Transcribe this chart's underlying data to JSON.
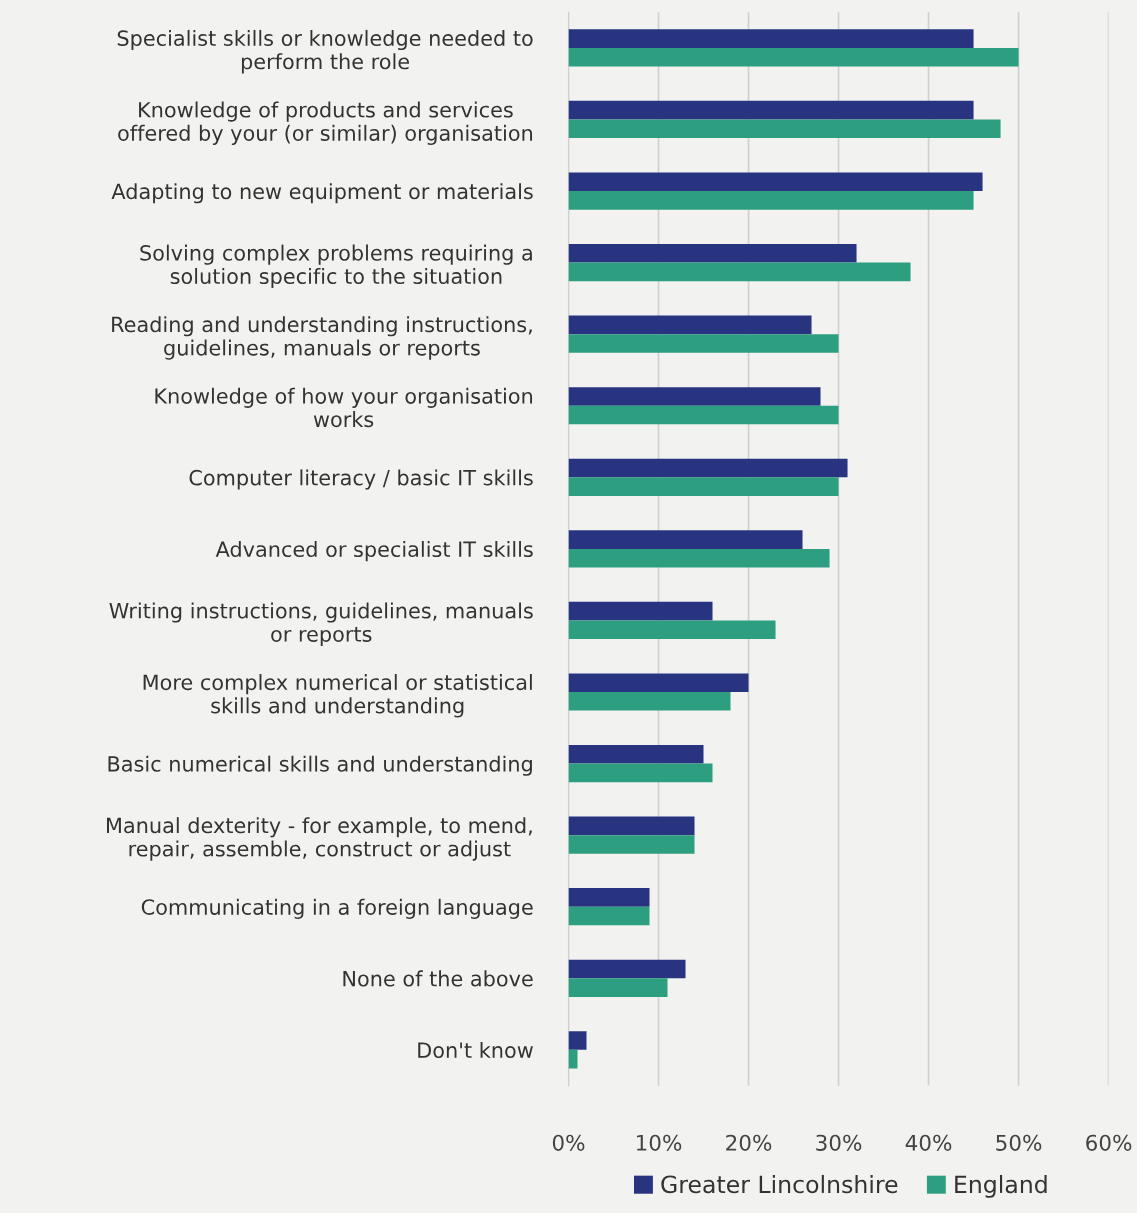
{
  "chart_data": {
    "type": "bar",
    "orientation": "horizontal",
    "categories": [
      "Specialist skills or knowledge needed to\nperform the role",
      "Knowledge of products and services\noffered by your (or similar) organisation",
      "Adapting to new equipment or materials",
      "Solving complex problems requiring a\nsolution specific to the situation",
      "Reading and understanding instructions,\nguidelines, manuals or reports",
      "Knowledge of how your organisation\nworks",
      "Computer literacy / basic IT skills",
      "Advanced or specialist IT skills",
      "Writing instructions, guidelines, manuals\nor reports",
      "More complex numerical or statistical\nskills and understanding",
      "Basic numerical skills and understanding",
      "Manual dexterity - for example, to mend,\nrepair, assemble, construct or adjust",
      "Communicating in a foreign language",
      "None of the above",
      "Don't know"
    ],
    "series": [
      {
        "name": "Greater Lincolnshire",
        "color": "#283480",
        "values": [
          45,
          45,
          46,
          32,
          27,
          28,
          31,
          26,
          16,
          20,
          15,
          14,
          9,
          13,
          2
        ]
      },
      {
        "name": "England",
        "color": "#2e9e80",
        "values": [
          50,
          48,
          45,
          38,
          30,
          30,
          30,
          29,
          23,
          18,
          16,
          14,
          9,
          11,
          1
        ]
      }
    ],
    "xlim": [
      0,
      60
    ],
    "xticks": [
      {
        "value": 0,
        "label": "0%"
      },
      {
        "value": 10,
        "label": "10%"
      },
      {
        "value": 20,
        "label": "20%"
      },
      {
        "value": 30,
        "label": "30%"
      },
      {
        "value": 40,
        "label": "40%"
      },
      {
        "value": 50,
        "label": "50%"
      },
      {
        "value": 60,
        "label": "60%"
      }
    ],
    "grid": "x",
    "legend": "bottom"
  }
}
